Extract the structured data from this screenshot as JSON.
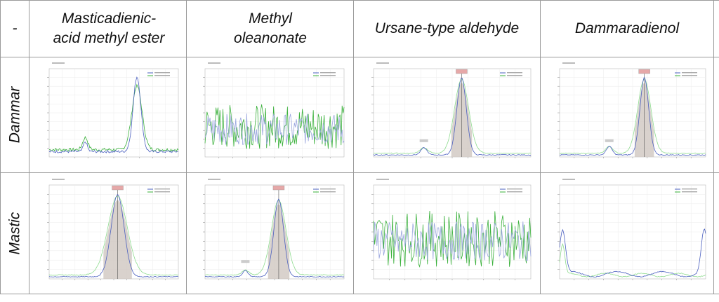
{
  "table": {
    "corner": "-",
    "columns": [
      "Masticadienic-acid methyl ester",
      "Methyl oleanonate",
      "Ursane-type aldehyde",
      "Dammaradienol"
    ],
    "rows": [
      "Dammar",
      "Mastic"
    ]
  },
  "colors": {
    "blue": "#4a5fbf",
    "green": "#39b03a",
    "lightblue": "#9aa6de",
    "lightgreen": "#8fdc8f",
    "peak_fill": "#cfc7c0"
  },
  "plots": [
    {
      "row": 0,
      "col": 0,
      "kind": "bump",
      "peak": 0.68,
      "width": 0.03,
      "amp": 0.92,
      "noise": 0.08,
      "base": 0.1,
      "label": ""
    },
    {
      "row": 0,
      "col": 1,
      "kind": "noisy",
      "noise": 0.55,
      "base": 0.25,
      "label": ""
    },
    {
      "row": 0,
      "col": 2,
      "kind": "peak",
      "peak": 0.56,
      "width": 0.03,
      "amp": 0.95,
      "minor": 0.35,
      "label": "56.27"
    },
    {
      "row": 0,
      "col": 3,
      "kind": "peak",
      "peak": 0.58,
      "width": 0.03,
      "amp": 0.95,
      "minor": 0.42,
      "label": "56.27"
    },
    {
      "row": 1,
      "col": 0,
      "kind": "peak",
      "peak": 0.53,
      "width": 0.05,
      "amp": 0.95,
      "minor": 0,
      "label": "49.28"
    },
    {
      "row": 1,
      "col": 1,
      "kind": "double",
      "peak": 0.53,
      "width": 0.035,
      "amp": 0.9,
      "minor": 0.28,
      "label": "49.30"
    },
    {
      "row": 1,
      "col": 2,
      "kind": "noisy",
      "noise": 0.65,
      "base": 0.35,
      "label": ""
    },
    {
      "row": 1,
      "col": 3,
      "kind": "flat",
      "label": ""
    }
  ]
}
